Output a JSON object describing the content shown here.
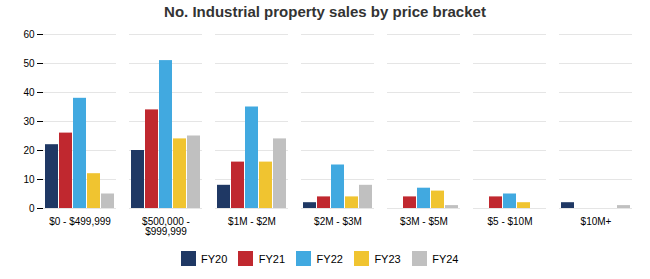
{
  "chart_data": {
    "type": "bar",
    "title": "No. Industrial property sales by price bracket",
    "categories": [
      "$0 - $499,999",
      "$500,000 -\n$999,999",
      "$1M - $2M",
      "$2M - $3M",
      "$3M - $5M",
      "$5 - $10M",
      "$10M+"
    ],
    "series": [
      {
        "name": "FY20",
        "color": "#1f3864",
        "values": [
          22,
          20,
          8,
          2,
          0,
          0,
          2
        ]
      },
      {
        "name": "FY21",
        "color": "#c0282f",
        "values": [
          26,
          34,
          16,
          4,
          4,
          4,
          0
        ]
      },
      {
        "name": "FY22",
        "color": "#41a9e0",
        "values": [
          38,
          51,
          35,
          15,
          7,
          5,
          0
        ]
      },
      {
        "name": "FY23",
        "color": "#f0c430",
        "values": [
          12,
          24,
          16,
          4,
          6,
          2,
          0
        ]
      },
      {
        "name": "FY24",
        "color": "#c0c0c0",
        "values": [
          5,
          25,
          24,
          8,
          1,
          0,
          1
        ]
      }
    ],
    "ylim": [
      0,
      60
    ],
    "yticks": [
      0,
      10,
      20,
      30,
      40,
      50,
      60
    ],
    "grid": true,
    "legend": "bottom"
  }
}
